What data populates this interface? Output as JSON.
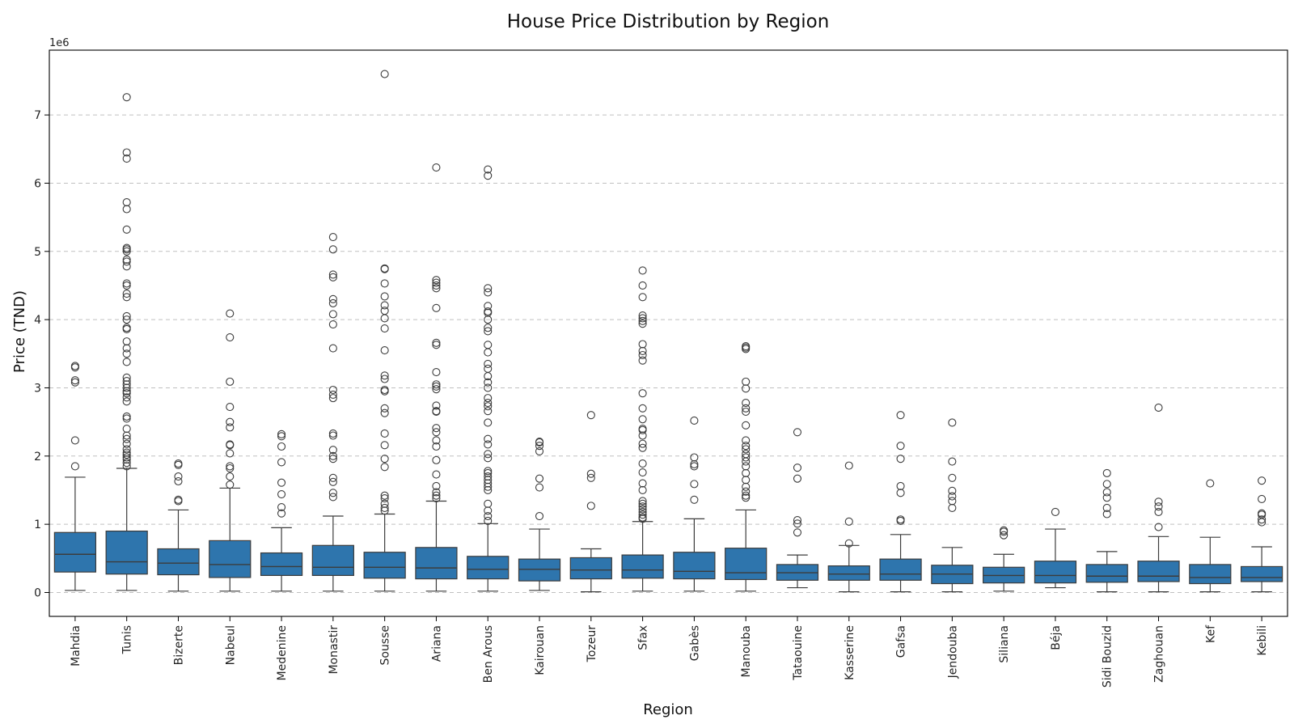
{
  "chart_data": {
    "type": "box",
    "title": "House Price Distribution by Region",
    "xlabel": "Region",
    "ylabel": "Price (TND)",
    "y_offset_label": "1e6",
    "y_unit_scale": 1000000,
    "ylim": [
      -0.35,
      7.95
    ],
    "yticks": [
      0,
      1,
      2,
      3,
      4,
      5,
      6,
      7
    ],
    "grid": "y-dashed",
    "box_color": "#2e75ad",
    "edge_color": "#3c3c3c",
    "grid_color": "#c0c0c0",
    "categories": [
      "Mahdia",
      "Tunis",
      "Bizerte",
      "Nabeul",
      "Medenine",
      "Monastir",
      "Sousse",
      "Ariana",
      "Ben Arous",
      "Kairouan",
      "Tozeur",
      "Sfax",
      "Gabès",
      "Manouba",
      "Tataouine",
      "Kasserine",
      "Gafsa",
      "Jendouba",
      "Siliana",
      "Béja",
      "Sidi Bouzid",
      "Zaghouan",
      "Kef",
      "Kebili"
    ],
    "boxes": [
      {
        "region": "Mahdia",
        "whisker_low": 0.03,
        "q1": 0.3,
        "median": 0.56,
        "q3": 0.88,
        "whisker_high": 1.69,
        "outliers": [
          1.85,
          2.23,
          3.08,
          3.11,
          3.3,
          3.32
        ]
      },
      {
        "region": "Tunis",
        "whisker_low": 0.03,
        "q1": 0.27,
        "median": 0.45,
        "q3": 0.9,
        "whisker_high": 1.82,
        "outliers": [
          1.85,
          1.9,
          1.95,
          1.98,
          2.02,
          2.05,
          2.1,
          2.18,
          2.25,
          2.3,
          2.4,
          2.55,
          2.58,
          2.8,
          2.86,
          2.92,
          2.95,
          3.0,
          3.05,
          3.1,
          3.15,
          3.38,
          3.5,
          3.58,
          3.68,
          3.86,
          3.88,
          4.0,
          4.05,
          4.33,
          4.38,
          4.5,
          4.53,
          4.78,
          4.85,
          4.88,
          5.0,
          5.03,
          5.05,
          5.32,
          5.62,
          5.72,
          6.36,
          6.45,
          7.26
        ]
      },
      {
        "region": "Bizerte",
        "whisker_low": 0.02,
        "q1": 0.26,
        "median": 0.43,
        "q3": 0.64,
        "whisker_high": 1.21,
        "outliers": [
          1.34,
          1.36,
          1.63,
          1.7,
          1.87,
          1.89
        ]
      },
      {
        "region": "Nabeul",
        "whisker_low": 0.02,
        "q1": 0.22,
        "median": 0.41,
        "q3": 0.76,
        "whisker_high": 1.53,
        "outliers": [
          1.58,
          1.7,
          1.82,
          1.85,
          2.04,
          2.16,
          2.17,
          2.42,
          2.5,
          2.72,
          3.09,
          3.74,
          4.09
        ]
      },
      {
        "region": "Medenine",
        "whisker_low": 0.02,
        "q1": 0.25,
        "median": 0.38,
        "q3": 0.58,
        "whisker_high": 0.95,
        "outliers": [
          1.16,
          1.25,
          1.44,
          1.61,
          1.91,
          2.14,
          2.29,
          2.32
        ]
      },
      {
        "region": "Monastir",
        "whisker_low": 0.02,
        "q1": 0.25,
        "median": 0.37,
        "q3": 0.69,
        "whisker_high": 1.12,
        "outliers": [
          1.4,
          1.46,
          1.62,
          1.68,
          1.96,
          2.0,
          2.09,
          2.3,
          2.33,
          2.85,
          2.9,
          2.97,
          3.58,
          3.93,
          4.08,
          4.24,
          4.3,
          4.62,
          4.66,
          5.03,
          5.21
        ]
      },
      {
        "region": "Sousse",
        "whisker_low": 0.02,
        "q1": 0.21,
        "median": 0.37,
        "q3": 0.59,
        "whisker_high": 1.15,
        "outliers": [
          1.2,
          1.24,
          1.3,
          1.38,
          1.42,
          1.84,
          1.96,
          2.16,
          2.33,
          2.63,
          2.7,
          2.95,
          2.97,
          3.13,
          3.18,
          3.55,
          3.87,
          4.02,
          4.13,
          4.21,
          4.34,
          4.53,
          4.74,
          4.75,
          7.6
        ]
      },
      {
        "region": "Ariana",
        "whisker_low": 0.02,
        "q1": 0.2,
        "median": 0.36,
        "q3": 0.66,
        "whisker_high": 1.34,
        "outliers": [
          1.38,
          1.42,
          1.47,
          1.56,
          1.73,
          1.94,
          2.14,
          2.23,
          2.35,
          2.41,
          2.65,
          2.66,
          2.74,
          2.98,
          3.02,
          3.05,
          3.23,
          3.63,
          3.66,
          4.17,
          4.46,
          4.5,
          4.54,
          4.58,
          6.23
        ]
      },
      {
        "region": "Ben Arous",
        "whisker_low": 0.02,
        "q1": 0.2,
        "median": 0.34,
        "q3": 0.53,
        "whisker_high": 1.01,
        "outliers": [
          1.05,
          1.12,
          1.2,
          1.3,
          1.5,
          1.55,
          1.6,
          1.65,
          1.7,
          1.75,
          1.78,
          1.97,
          2.03,
          2.17,
          2.25,
          2.49,
          2.66,
          2.73,
          2.78,
          2.85,
          3.0,
          3.08,
          3.17,
          3.28,
          3.35,
          3.52,
          3.63,
          3.83,
          3.88,
          4.0,
          4.1,
          4.12,
          4.2,
          4.4,
          4.46,
          6.11,
          6.2
        ]
      },
      {
        "region": "Kairouan",
        "whisker_low": 0.03,
        "q1": 0.17,
        "median": 0.34,
        "q3": 0.49,
        "whisker_high": 0.93,
        "outliers": [
          1.12,
          1.54,
          1.67,
          2.07,
          2.15,
          2.2,
          2.21
        ]
      },
      {
        "region": "Tozeur",
        "whisker_low": 0.01,
        "q1": 0.2,
        "median": 0.33,
        "q3": 0.51,
        "whisker_high": 0.64,
        "outliers": [
          1.27,
          1.68,
          1.74,
          2.6
        ]
      },
      {
        "region": "Sfax",
        "whisker_low": 0.02,
        "q1": 0.21,
        "median": 0.33,
        "q3": 0.55,
        "whisker_high": 1.04,
        "outliers": [
          1.08,
          1.1,
          1.14,
          1.18,
          1.22,
          1.26,
          1.3,
          1.34,
          1.5,
          1.6,
          1.76,
          1.89,
          2.12,
          2.18,
          2.3,
          2.38,
          2.4,
          2.54,
          2.7,
          2.92,
          3.4,
          3.48,
          3.54,
          3.64,
          3.94,
          3.98,
          4.02,
          4.06,
          4.33,
          4.5,
          4.72
        ]
      },
      {
        "region": "Gabès",
        "whisker_low": 0.02,
        "q1": 0.2,
        "median": 0.31,
        "q3": 0.59,
        "whisker_high": 1.08,
        "outliers": [
          1.36,
          1.59,
          1.85,
          1.88,
          1.98,
          2.52
        ]
      },
      {
        "region": "Manouba",
        "whisker_low": 0.02,
        "q1": 0.19,
        "median": 0.29,
        "q3": 0.65,
        "whisker_high": 1.21,
        "outliers": [
          1.39,
          1.42,
          1.48,
          1.55,
          1.65,
          1.75,
          1.85,
          1.92,
          1.98,
          2.03,
          2.1,
          2.15,
          2.23,
          2.45,
          2.65,
          2.7,
          2.78,
          2.99,
          3.09,
          3.57,
          3.59,
          3.61
        ]
      },
      {
        "region": "Tataouine",
        "whisker_low": 0.07,
        "q1": 0.18,
        "median": 0.29,
        "q3": 0.41,
        "whisker_high": 0.55,
        "outliers": [
          0.88,
          1.01,
          1.06,
          1.67,
          1.83,
          2.35
        ]
      },
      {
        "region": "Kasserine",
        "whisker_low": 0.01,
        "q1": 0.18,
        "median": 0.27,
        "q3": 0.39,
        "whisker_high": 0.69,
        "outliers": [
          0.72,
          1.04,
          1.86
        ]
      },
      {
        "region": "Gafsa",
        "whisker_low": 0.01,
        "q1": 0.18,
        "median": 0.27,
        "q3": 0.49,
        "whisker_high": 0.85,
        "outliers": [
          1.05,
          1.07,
          1.46,
          1.56,
          1.96,
          2.15,
          2.6
        ]
      },
      {
        "region": "Jendouba",
        "whisker_low": 0.01,
        "q1": 0.13,
        "median": 0.27,
        "q3": 0.4,
        "whisker_high": 0.66,
        "outliers": [
          1.24,
          1.34,
          1.41,
          1.49,
          1.68,
          1.92,
          2.49
        ]
      },
      {
        "region": "Siliana",
        "whisker_low": 0.02,
        "q1": 0.14,
        "median": 0.25,
        "q3": 0.37,
        "whisker_high": 0.56,
        "outliers": [
          0.84,
          0.89,
          0.91
        ]
      },
      {
        "region": "Béja",
        "whisker_low": 0.07,
        "q1": 0.14,
        "median": 0.25,
        "q3": 0.46,
        "whisker_high": 0.93,
        "outliers": [
          1.18
        ]
      },
      {
        "region": "Sidi Bouzid",
        "whisker_low": 0.01,
        "q1": 0.15,
        "median": 0.24,
        "q3": 0.41,
        "whisker_high": 0.6,
        "outliers": [
          1.15,
          1.24,
          1.39,
          1.47,
          1.59,
          1.75
        ]
      },
      {
        "region": "Zaghouan",
        "whisker_low": 0.01,
        "q1": 0.16,
        "median": 0.24,
        "q3": 0.46,
        "whisker_high": 0.82,
        "outliers": [
          0.96,
          1.18,
          1.26,
          1.33,
          2.71
        ]
      },
      {
        "region": "Kef",
        "whisker_low": 0.01,
        "q1": 0.13,
        "median": 0.22,
        "q3": 0.41,
        "whisker_high": 0.81,
        "outliers": [
          1.6
        ]
      },
      {
        "region": "Kebili",
        "whisker_low": 0.01,
        "q1": 0.16,
        "median": 0.22,
        "q3": 0.38,
        "whisker_high": 0.67,
        "outliers": [
          1.03,
          1.07,
          1.14,
          1.16,
          1.37,
          1.64
        ]
      }
    ]
  }
}
